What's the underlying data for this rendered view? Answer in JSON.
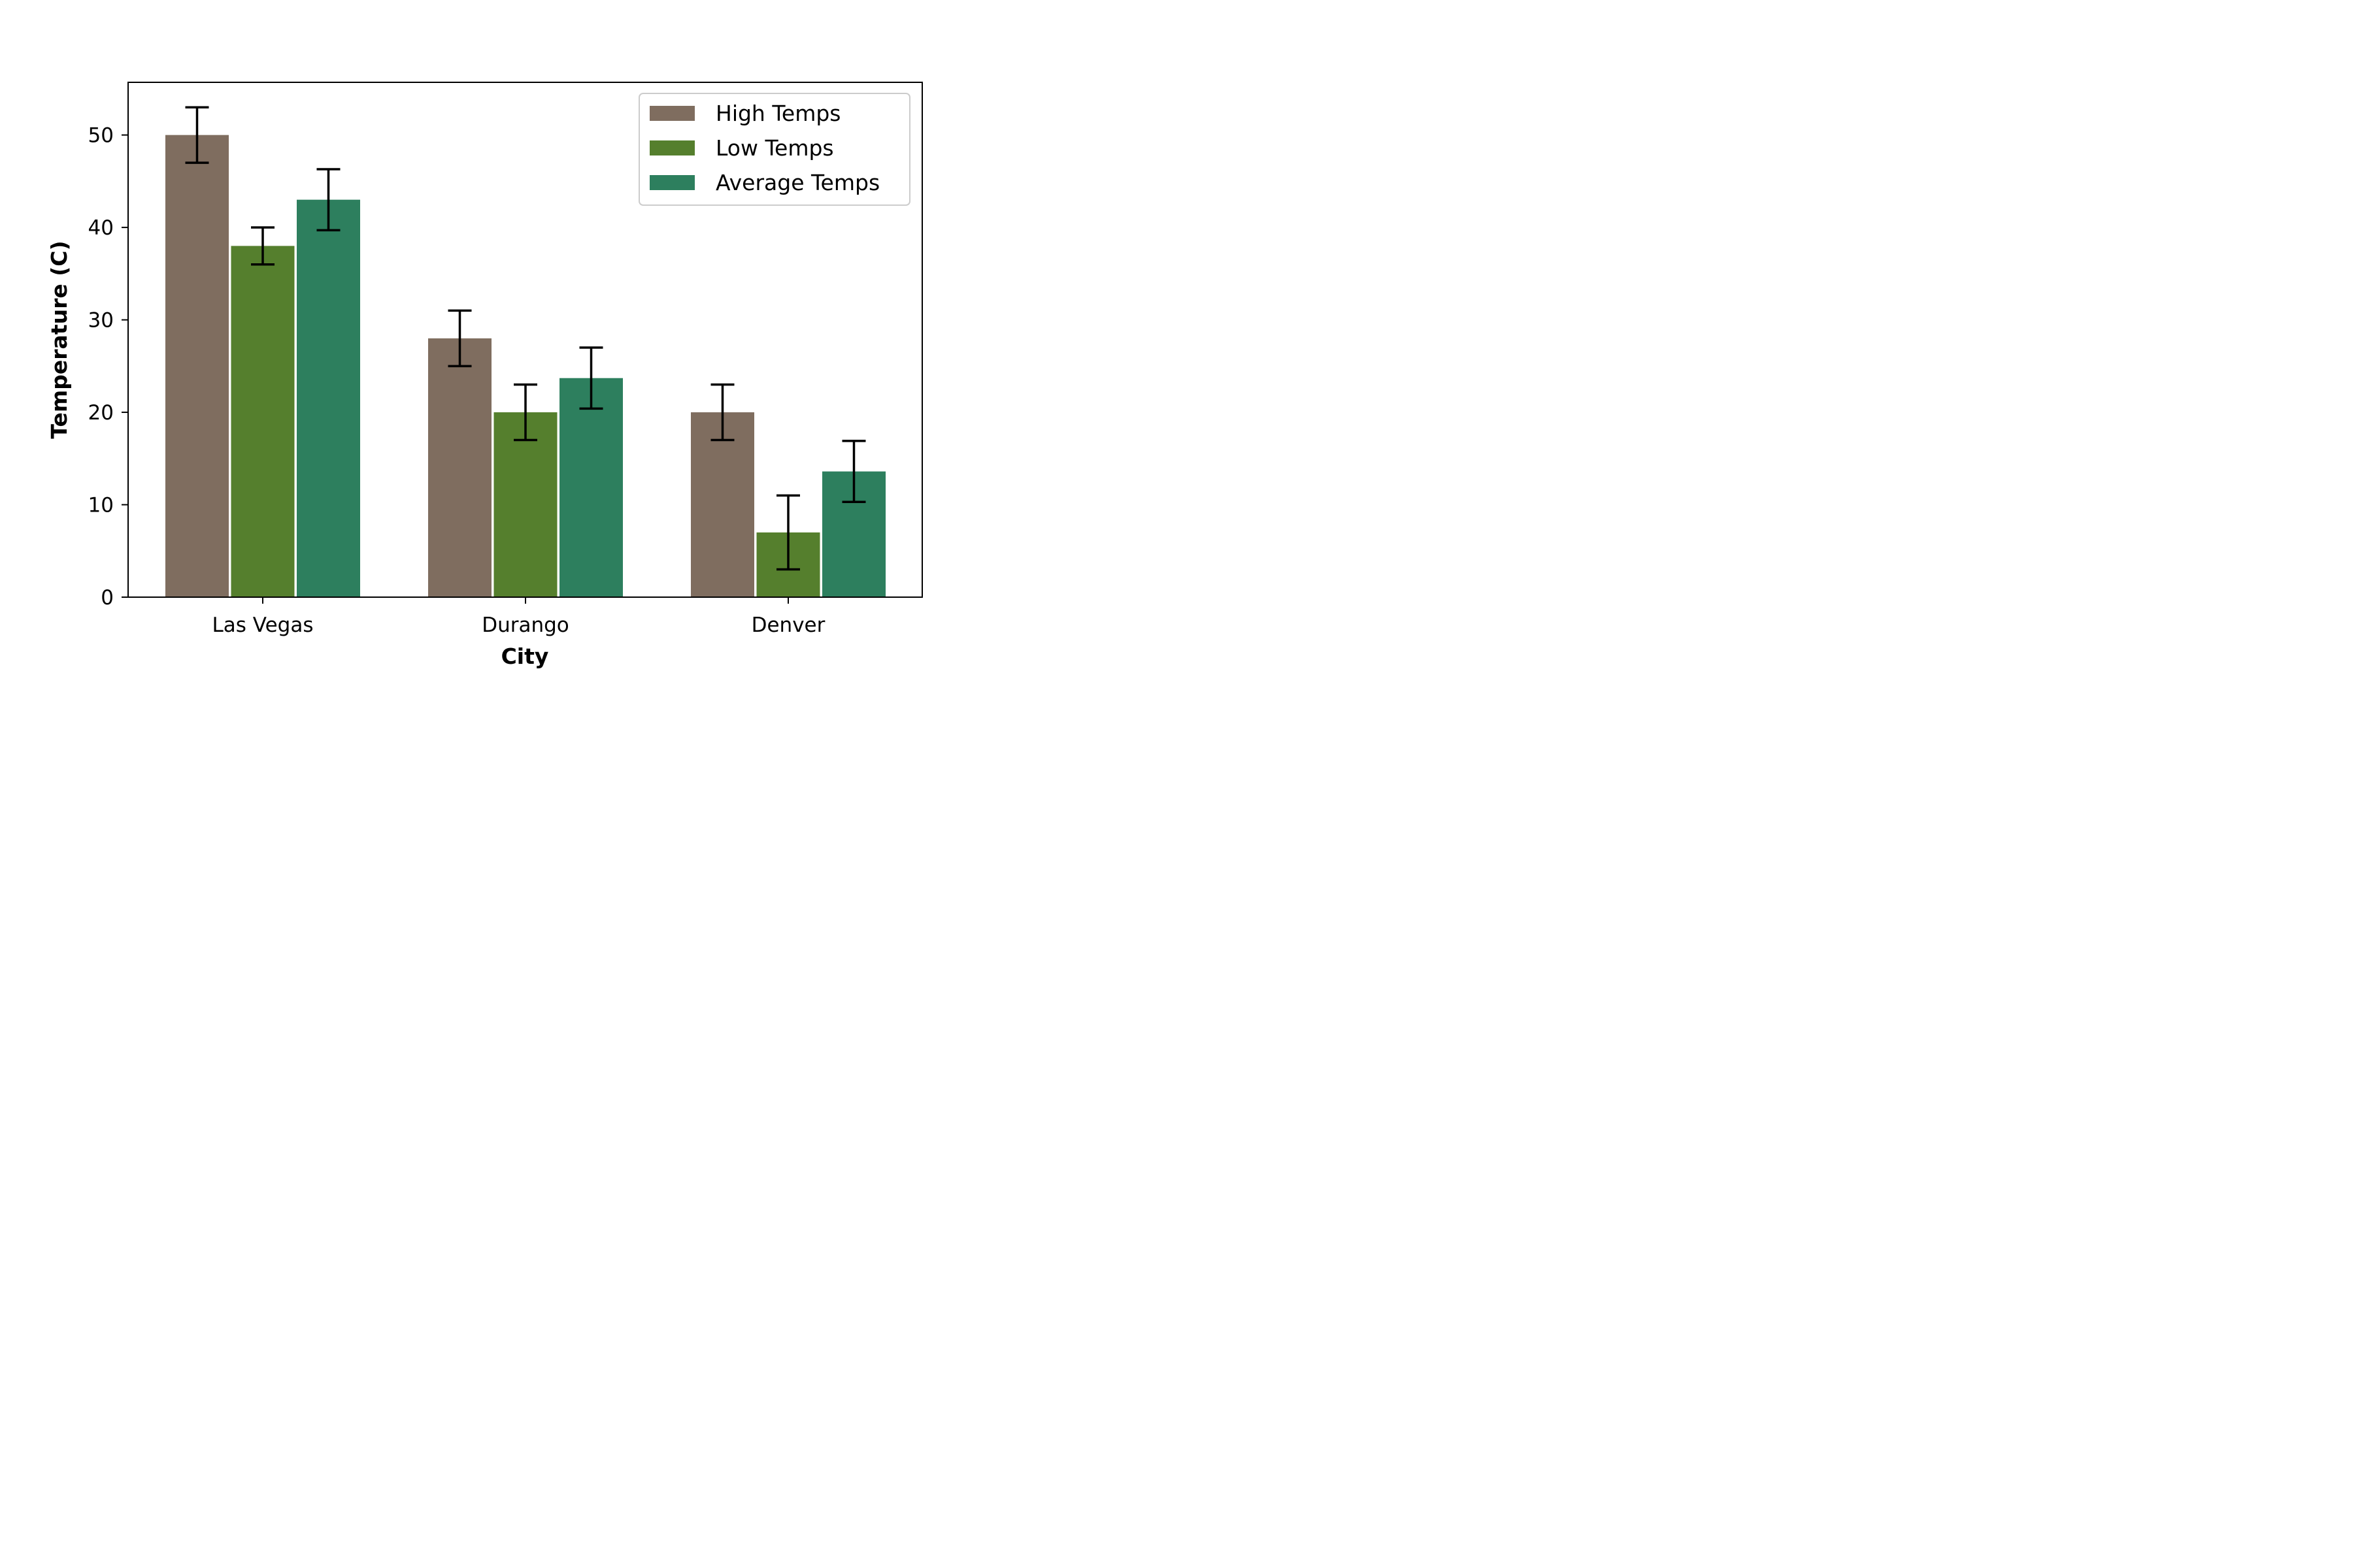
{
  "chart_data": {
    "type": "bar",
    "categories": [
      "Las Vegas",
      "Durango",
      "Denver"
    ],
    "series": [
      {
        "name": "High Temps",
        "values": [
          50,
          28,
          20
        ],
        "errors": [
          3,
          3,
          3
        ],
        "color": "#7f6d5f"
      },
      {
        "name": "Low Temps",
        "values": [
          38,
          20,
          7
        ],
        "errors": [
          2,
          3,
          4
        ],
        "color": "#557f2d"
      },
      {
        "name": "Average Temps",
        "values": [
          43,
          23.7,
          13.6
        ],
        "errors": [
          3.3,
          3.3,
          3.3
        ],
        "color": "#2d7f5e"
      }
    ],
    "xlabel": "City",
    "ylabel": "Temperature (C)",
    "ylim": [
      0,
      55.7
    ],
    "yticks": [
      0,
      10,
      20,
      30,
      40,
      50
    ],
    "grid": false,
    "legend_position": "top-right"
  }
}
